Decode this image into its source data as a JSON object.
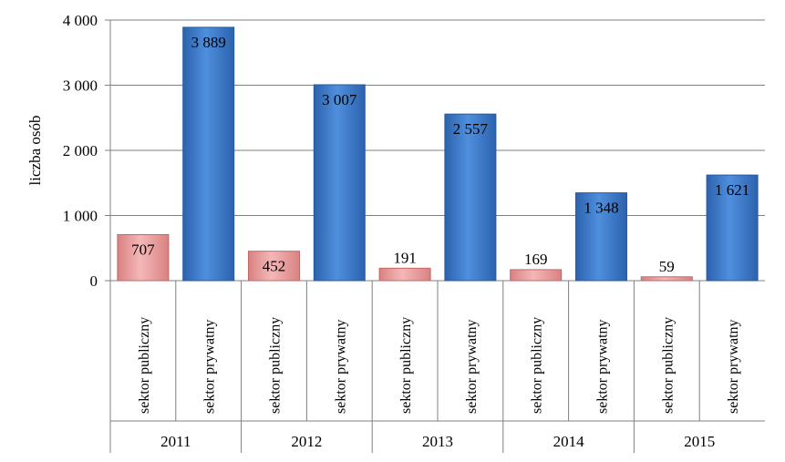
{
  "chart_data": {
    "type": "bar",
    "ylabel": "liczba osób",
    "ylim": [
      0,
      4000
    ],
    "yticks": [
      0,
      1000,
      2000,
      3000,
      4000
    ],
    "ytick_labels": [
      "0",
      "1 000",
      "2 000",
      "3 000",
      "4 000"
    ],
    "grid": true,
    "groups": [
      {
        "year": "2011",
        "bars": [
          {
            "category": "sektor publiczny",
            "value": 707,
            "label": "707",
            "sector": "public"
          },
          {
            "category": "sektor prywatny",
            "value": 3889,
            "label": "3 889",
            "sector": "private"
          }
        ]
      },
      {
        "year": "2012",
        "bars": [
          {
            "category": "sektor publiczny",
            "value": 452,
            "label": "452",
            "sector": "public"
          },
          {
            "category": "sektor prywatny",
            "value": 3007,
            "label": "3 007",
            "sector": "private"
          }
        ]
      },
      {
        "year": "2013",
        "bars": [
          {
            "category": "sektor publiczny",
            "value": 191,
            "label": "191",
            "sector": "public"
          },
          {
            "category": "sektor prywatny",
            "value": 2557,
            "label": "2 557",
            "sector": "private"
          }
        ]
      },
      {
        "year": "2014",
        "bars": [
          {
            "category": "sektor publiczny",
            "value": 169,
            "label": "169",
            "sector": "public"
          },
          {
            "category": "sektor prywatny",
            "value": 1348,
            "label": "1 348",
            "sector": "private"
          }
        ]
      },
      {
        "year": "2015",
        "bars": [
          {
            "category": "sektor publiczny",
            "value": 59,
            "label": "59",
            "sector": "public"
          },
          {
            "category": "sektor prywatny",
            "value": 1621,
            "label": "1 621",
            "sector": "private"
          }
        ]
      }
    ],
    "colors": {
      "public": "#e89a9a",
      "private": "#3a78c8"
    }
  }
}
